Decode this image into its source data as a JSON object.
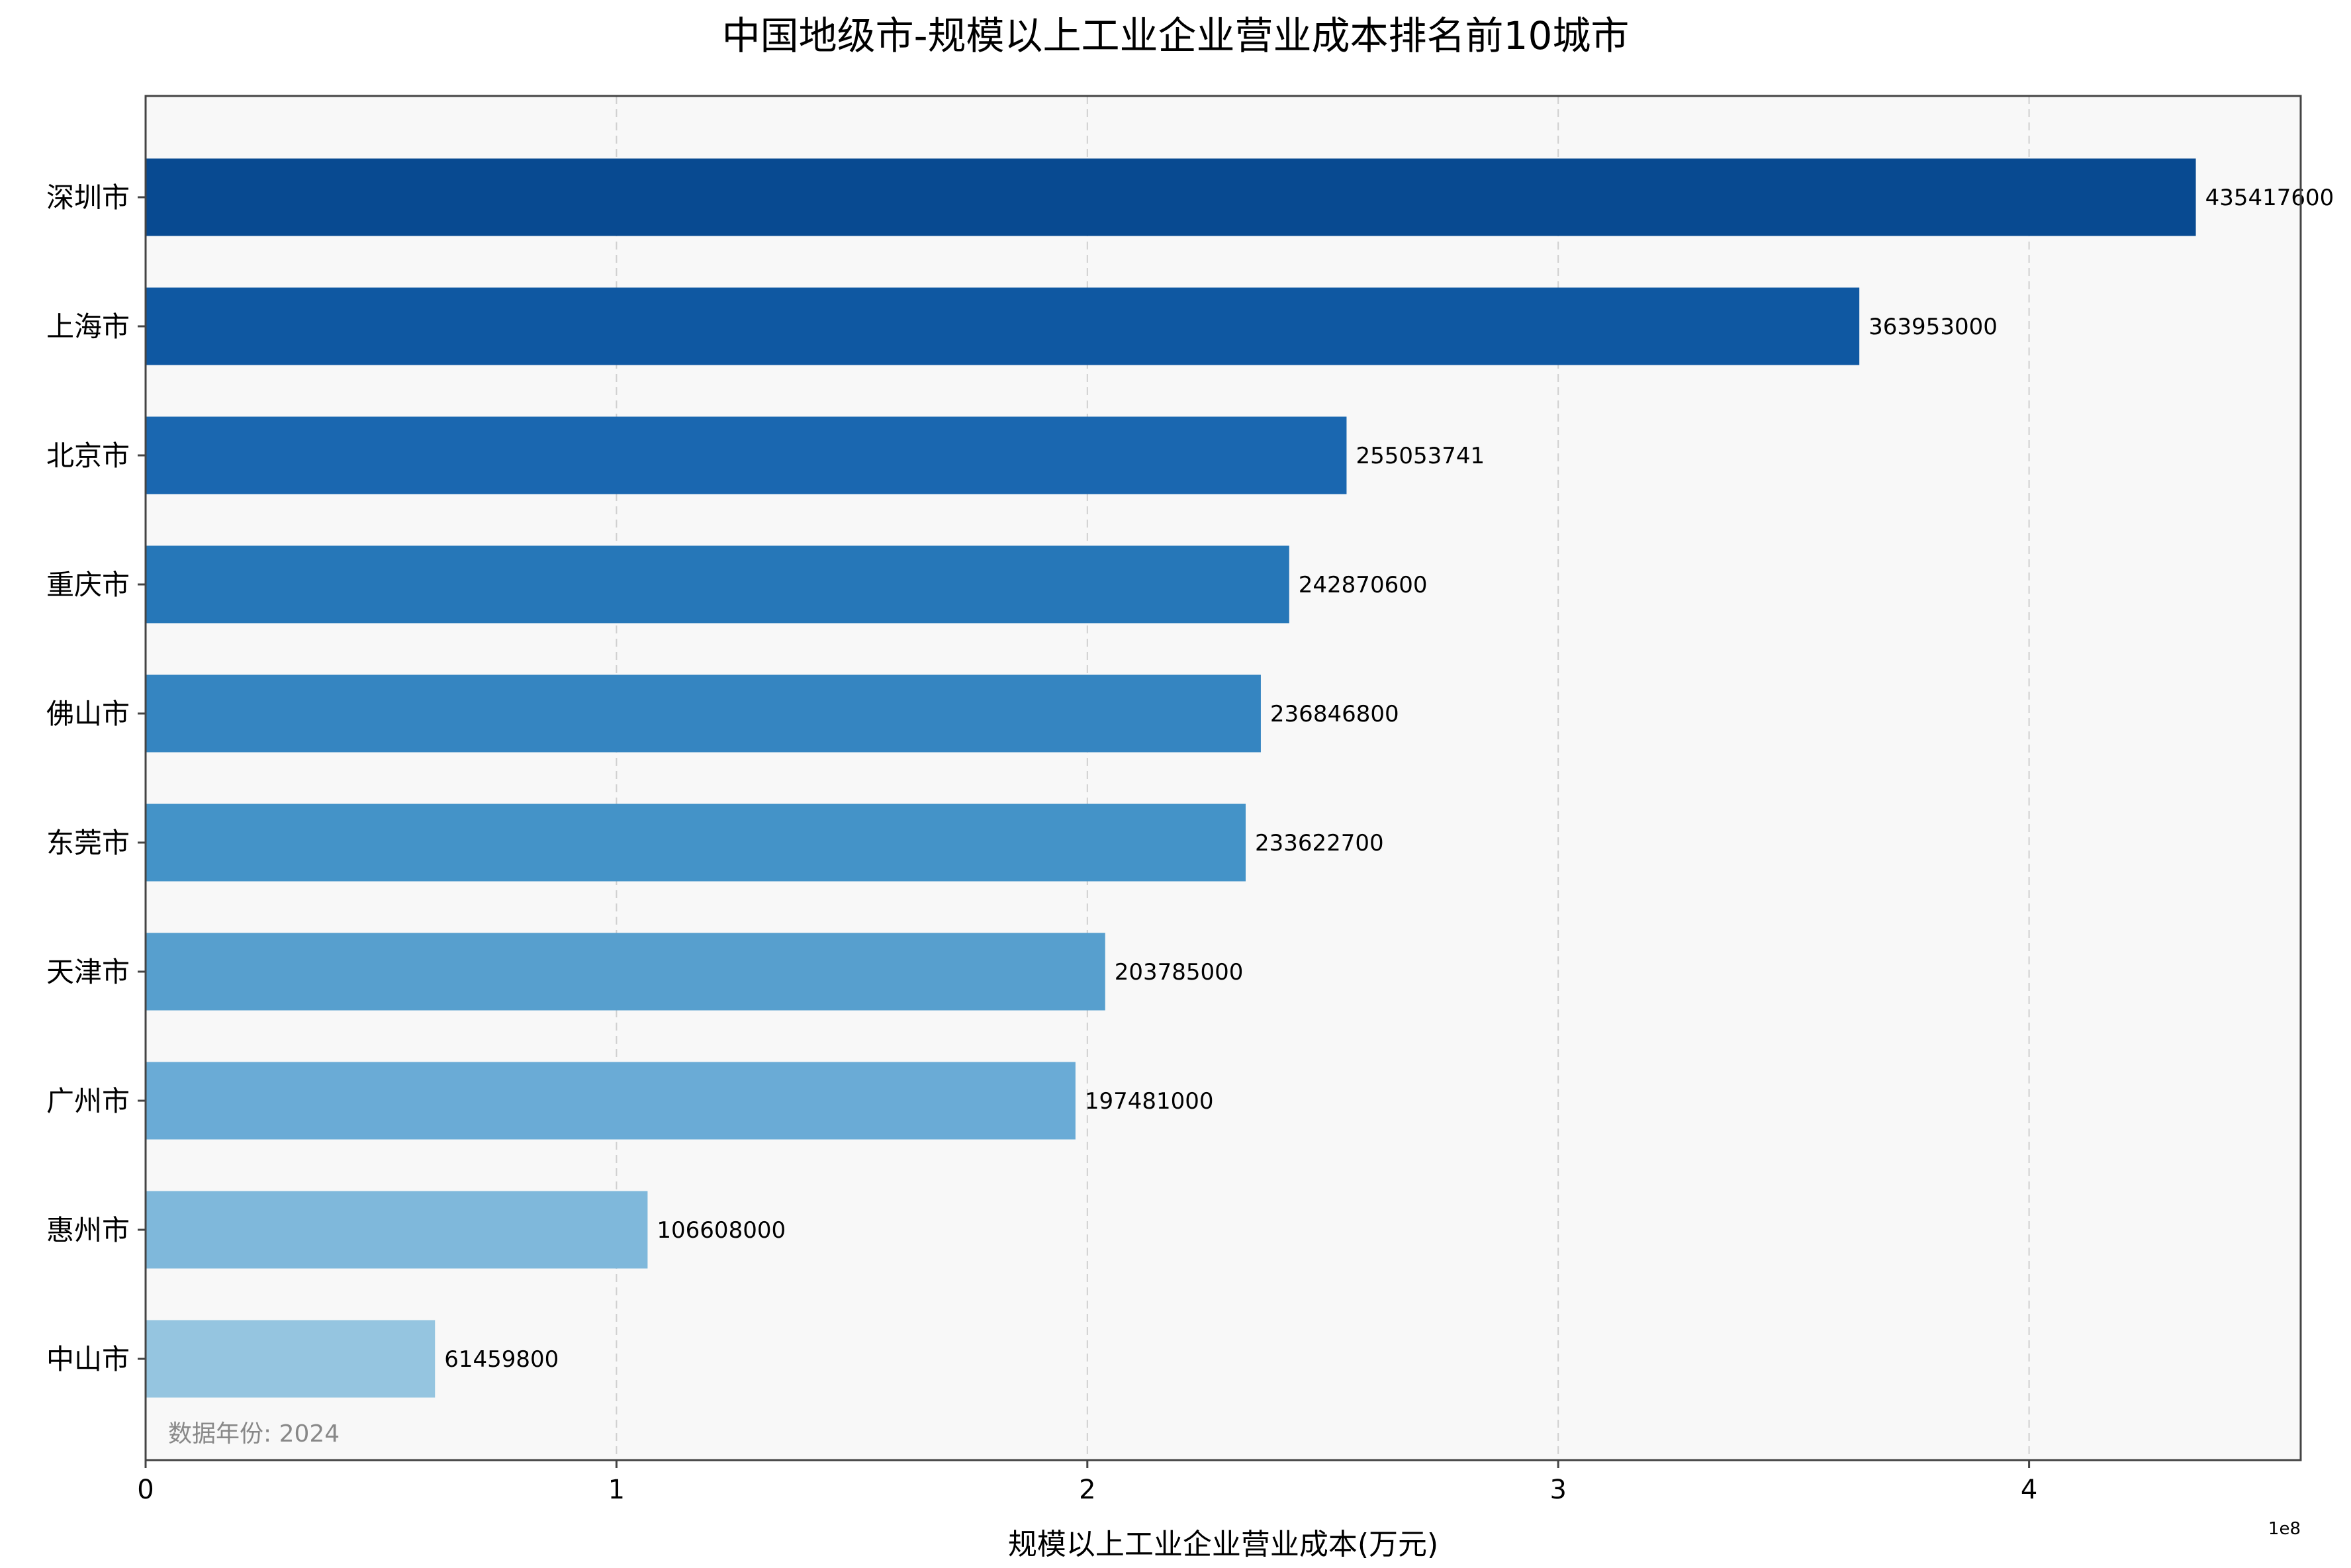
{
  "chart_data": {
    "type": "bar",
    "orientation": "horizontal",
    "title": "中国地级市-规模以上工业企业营业成本排名前10城市",
    "xlabel": "规模以上工业企业营业成本(万元)",
    "ylabel": "",
    "xlim": [
      0,
      457688480
    ],
    "x_ticks": [
      0,
      100000000,
      200000000,
      300000000,
      400000000
    ],
    "x_tick_labels": [
      "0",
      "1",
      "2",
      "3",
      "4"
    ],
    "offset_label": "1e8",
    "grid": "vertical dashed",
    "annotation": "数据年份: 2024",
    "categories": [
      "深圳市",
      "上海市",
      "北京市",
      "重庆市",
      "佛山市",
      "东莞市",
      "天津市",
      "广州市",
      "惠州市",
      "中山市"
    ],
    "values": [
      435417600,
      363953000,
      255053741,
      242870600,
      236846800,
      233622700,
      203785000,
      197481000,
      106608000,
      61459800
    ],
    "value_labels": [
      "435417600",
      "363953000",
      "255053741",
      "242870600",
      "236846800",
      "233622700",
      "203785000",
      "197481000",
      "106608000",
      "61459800"
    ],
    "colors": [
      "#084a91",
      "#0f58a2",
      "#1a67b0",
      "#2677b8",
      "#3585c1",
      "#4493c8",
      "#579fce",
      "#6aabd6",
      "#7fb8db",
      "#95c5e0"
    ]
  }
}
